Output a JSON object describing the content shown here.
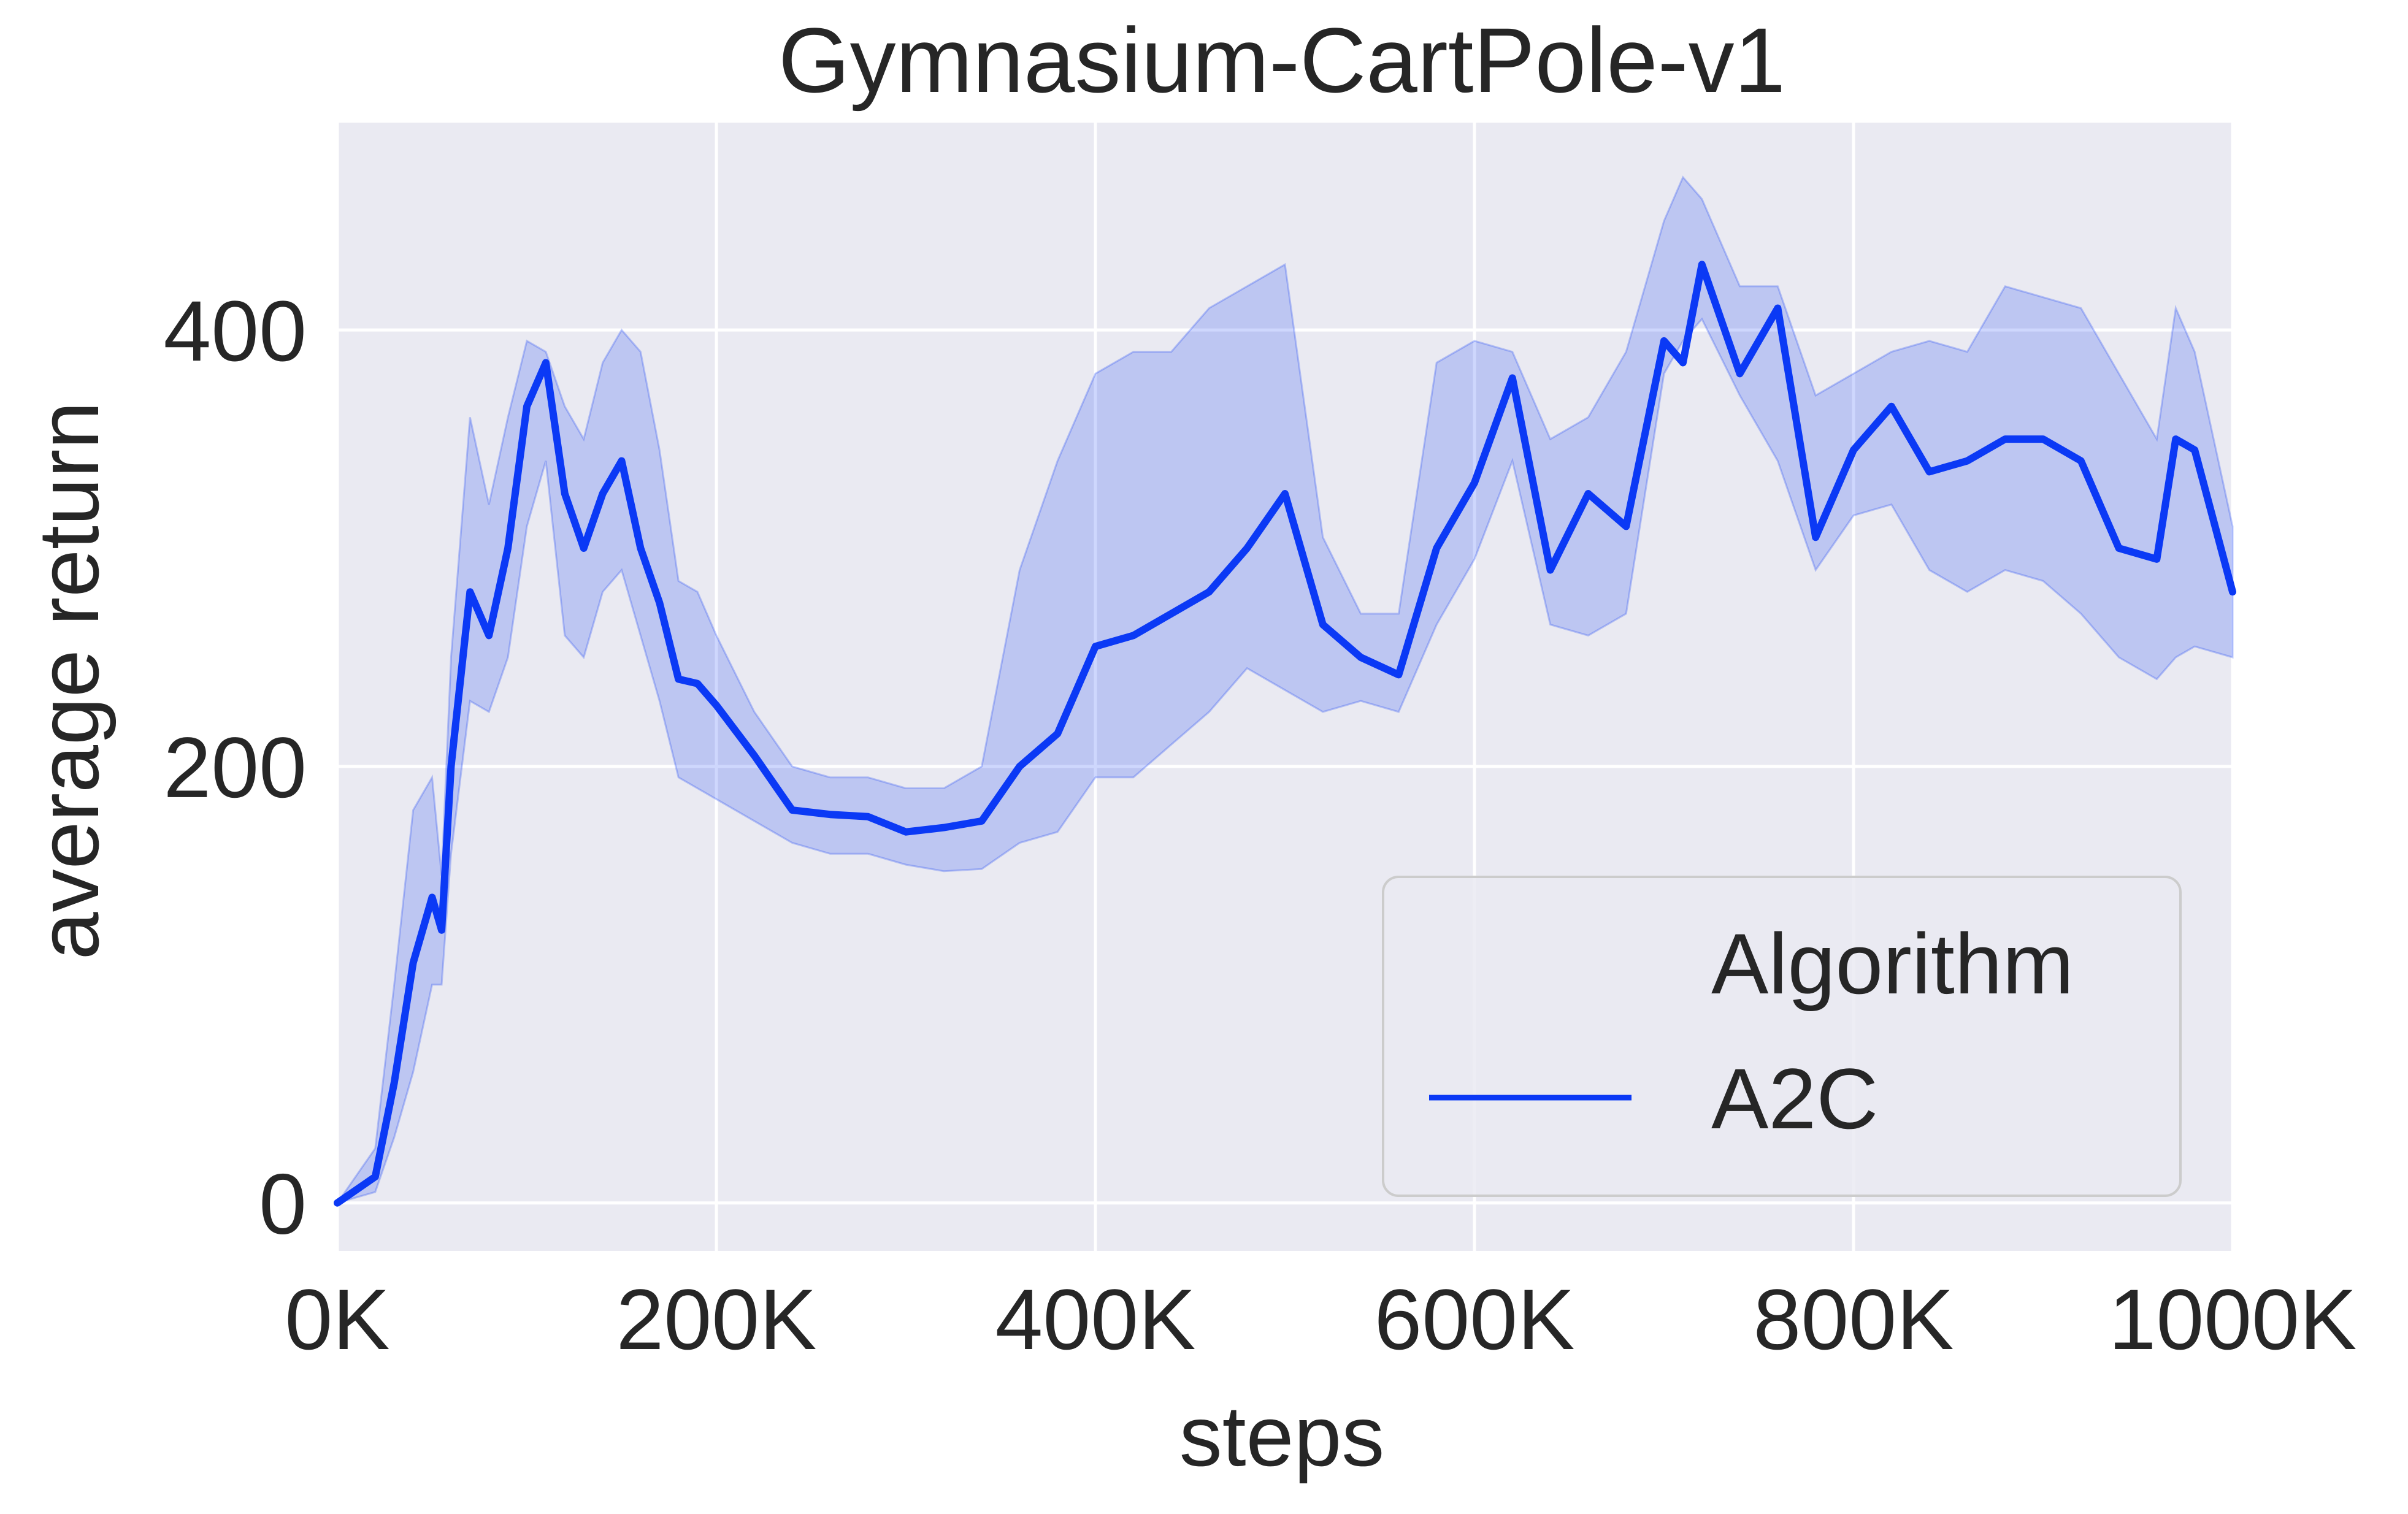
{
  "chart_data": {
    "type": "line",
    "title": "Gymnasium-CartPole-v1",
    "xlabel": "steps",
    "ylabel": "average return",
    "xlim": [
      0,
      1000000
    ],
    "ylim": [
      -22,
      495
    ],
    "x_ticks": [
      {
        "value": 0,
        "label": "0K"
      },
      {
        "value": 200000,
        "label": "200K"
      },
      {
        "value": 400000,
        "label": "400K"
      },
      {
        "value": 600000,
        "label": "600K"
      },
      {
        "value": 800000,
        "label": "800K"
      },
      {
        "value": 1000000,
        "label": "1000K"
      }
    ],
    "y_ticks": [
      {
        "value": 0,
        "label": "0"
      },
      {
        "value": 200,
        "label": "200"
      },
      {
        "value": 400,
        "label": "400"
      }
    ],
    "grid": true,
    "background_color": "#EAEAF2",
    "legend": {
      "title": "Algorithm",
      "position": "lower-right"
    },
    "x": [
      0,
      20000,
      30000,
      40000,
      50000,
      55000,
      60000,
      70000,
      80000,
      90000,
      100000,
      110000,
      120000,
      130000,
      140000,
      150000,
      160000,
      170000,
      180000,
      190000,
      200000,
      220000,
      240000,
      260000,
      280000,
      300000,
      320000,
      340000,
      360000,
      380000,
      400000,
      420000,
      440000,
      460000,
      480000,
      500000,
      520000,
      540000,
      560000,
      580000,
      600000,
      620000,
      640000,
      660000,
      680000,
      700000,
      710000,
      720000,
      740000,
      760000,
      780000,
      800000,
      820000,
      840000,
      860000,
      880000,
      900000,
      920000,
      940000,
      960000,
      970000,
      980000,
      1000000
    ],
    "series": [
      {
        "name": "A2C",
        "color": "#0B39F5",
        "band_color": "#0B39F5",
        "values": [
          0,
          12,
          55,
          110,
          140,
          125,
          200,
          280,
          260,
          300,
          365,
          385,
          325,
          300,
          325,
          340,
          300,
          275,
          240,
          238,
          228,
          205,
          180,
          178,
          177,
          170,
          172,
          175,
          200,
          215,
          255,
          260,
          270,
          280,
          300,
          325,
          265,
          250,
          242,
          300,
          330,
          378,
          290,
          325,
          310,
          395,
          385,
          430,
          380,
          410,
          305,
          345,
          365,
          335,
          340,
          350,
          350,
          340,
          300,
          295,
          350,
          345,
          280
        ],
        "upper": [
          0,
          25,
          100,
          180,
          195,
          150,
          250,
          360,
          320,
          360,
          395,
          390,
          365,
          350,
          385,
          400,
          390,
          345,
          285,
          280,
          260,
          225,
          200,
          195,
          195,
          190,
          190,
          200,
          290,
          340,
          380,
          390,
          390,
          410,
          420,
          430,
          305,
          270,
          270,
          385,
          395,
          390,
          350,
          360,
          390,
          450,
          470,
          460,
          420,
          420,
          370,
          380,
          390,
          395,
          390,
          420,
          415,
          410,
          380,
          350,
          410,
          390,
          310
        ],
        "lower": [
          0,
          5,
          30,
          60,
          100,
          100,
          160,
          230,
          225,
          250,
          310,
          340,
          260,
          250,
          280,
          290,
          260,
          230,
          195,
          190,
          185,
          175,
          165,
          160,
          160,
          155,
          152,
          153,
          165,
          170,
          195,
          195,
          210,
          225,
          245,
          235,
          225,
          230,
          225,
          265,
          295,
          340,
          265,
          260,
          270,
          380,
          395,
          405,
          370,
          340,
          290,
          315,
          320,
          290,
          280,
          290,
          285,
          270,
          250,
          240,
          250,
          255,
          250
        ]
      }
    ]
  }
}
